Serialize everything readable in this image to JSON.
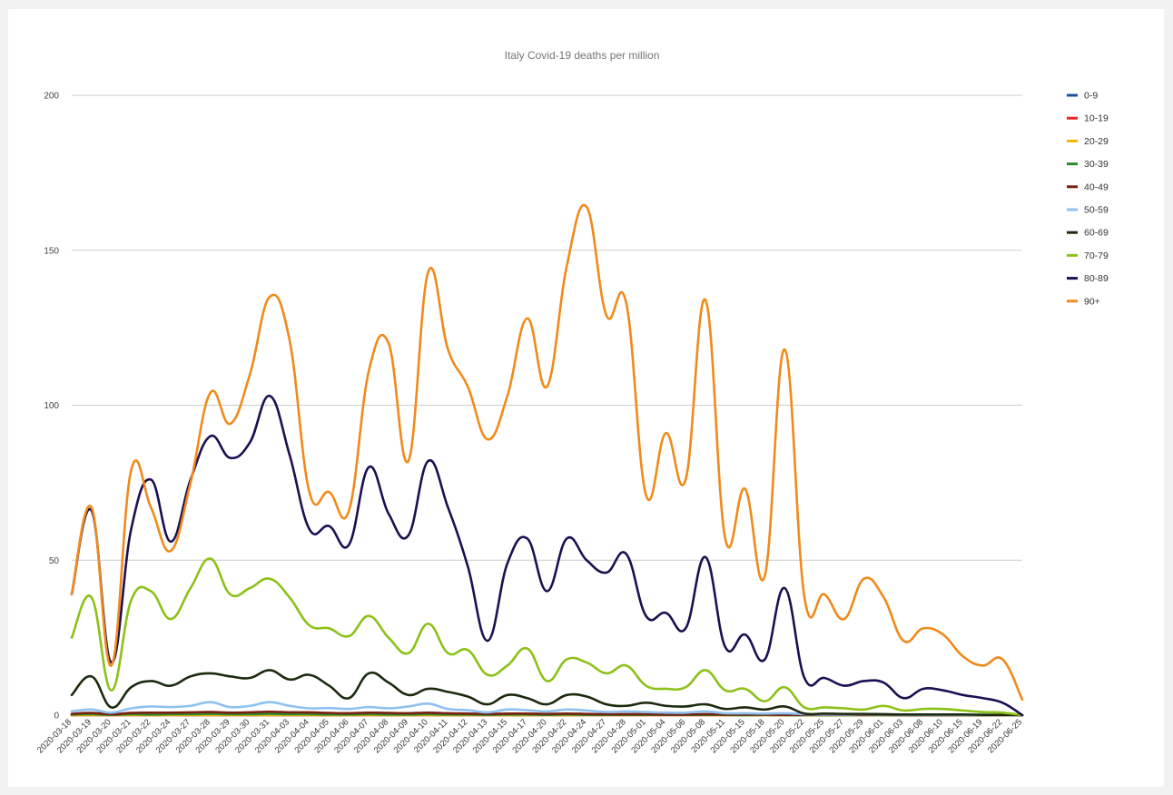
{
  "chart_data": {
    "type": "line",
    "title": "Italy Covid-19 deaths per million",
    "xlabel": "",
    "ylabel": "",
    "ylim": [
      0,
      200
    ],
    "yticks": [
      0,
      50,
      100,
      150,
      200
    ],
    "grid": true,
    "legend_position": "right",
    "categories": [
      "2020-03-18",
      "2020-03-19",
      "2020-03-20",
      "2020-03-21",
      "2020-03-22",
      "2020-03-24",
      "2020-03-27",
      "2020-03-28",
      "2020-03-29",
      "2020-03-30",
      "2020-03-31",
      "2020-04-03",
      "2020-04-04",
      "2020-04-05",
      "2020-04-06",
      "2020-04-07",
      "2020-04-08",
      "2020-04-09",
      "2020-04-10",
      "2020-04-11",
      "2020-04-12",
      "2020-04-13",
      "2020-04-15",
      "2020-04-17",
      "2020-04-20",
      "2020-04-22",
      "2020-04-24",
      "2020-04-27",
      "2020-04-28",
      "2020-05-01",
      "2020-05-04",
      "2020-05-06",
      "2020-05-08",
      "2020-05-11",
      "2020-05-15",
      "2020-05-18",
      "2020-05-20",
      "2020-05-22",
      "2020-05-25",
      "2020-05-27",
      "2020-05-29",
      "2020-06-01",
      "2020-06-03",
      "2020-06-08",
      "2020-06-10",
      "2020-06-15",
      "2020-06-19",
      "2020-06-22",
      "2020-06-25"
    ],
    "series": [
      {
        "name": "0-9",
        "color": "#1a4f9c",
        "values": [
          0,
          0,
          0,
          0,
          0,
          0,
          0,
          0,
          0,
          0,
          0,
          0,
          0,
          0,
          0,
          0,
          0,
          0,
          0,
          0,
          0,
          0,
          0,
          0,
          0,
          0,
          0,
          0,
          0,
          0,
          0,
          0,
          0,
          0,
          0,
          0,
          0,
          0,
          0,
          0,
          0,
          0,
          0,
          0,
          0,
          0,
          0,
          0,
          0
        ]
      },
      {
        "name": "10-19",
        "color": "#e8281e",
        "values": [
          0,
          0,
          0,
          0,
          0,
          0,
          0,
          0,
          0,
          0,
          0,
          0,
          0,
          0,
          0,
          0,
          0,
          0,
          0,
          0,
          0,
          0,
          0,
          0,
          0,
          0,
          0,
          0,
          0,
          0,
          0,
          0,
          0,
          0,
          0,
          0,
          0,
          0,
          0,
          0,
          0,
          0,
          0,
          0,
          0,
          0,
          0,
          0,
          0
        ]
      },
      {
        "name": "20-29",
        "color": "#f2b705",
        "values": [
          0,
          0,
          0,
          0,
          0,
          0,
          0,
          0,
          0,
          0,
          0,
          0,
          0,
          0,
          0,
          0,
          0,
          0,
          0,
          0,
          0,
          0,
          0,
          0,
          0,
          0,
          0,
          0,
          0,
          0,
          0,
          0,
          0,
          0,
          0,
          0,
          0,
          0,
          0,
          0,
          0,
          0,
          0,
          0,
          0,
          0,
          0,
          0,
          0
        ]
      },
      {
        "name": "30-39",
        "color": "#2e8b2e",
        "values": [
          0.2,
          0.3,
          0.1,
          0.3,
          0.2,
          0.3,
          0.3,
          0.4,
          0.3,
          0.3,
          0.4,
          0.3,
          0.3,
          0.2,
          0.2,
          0.3,
          0.2,
          0.2,
          0.3,
          0.2,
          0.2,
          0.1,
          0.2,
          0.2,
          0.1,
          0.2,
          0.1,
          0.1,
          0.1,
          0.1,
          0.1,
          0.1,
          0.1,
          0.1,
          0,
          0.1,
          0,
          0,
          0,
          0,
          0,
          0,
          0,
          0,
          0,
          0,
          0,
          0,
          0
        ]
      },
      {
        "name": "40-49",
        "color": "#7a1e12",
        "values": [
          0.4,
          0.7,
          0.3,
          0.7,
          0.8,
          0.8,
          0.9,
          1.0,
          0.8,
          0.9,
          1.1,
          0.9,
          0.9,
          0.7,
          0.6,
          0.8,
          0.7,
          0.6,
          0.8,
          0.6,
          0.5,
          0.4,
          0.5,
          0.5,
          0.4,
          0.5,
          0.4,
          0.3,
          0.3,
          0.3,
          0.2,
          0.2,
          0.3,
          0.2,
          0.2,
          0.2,
          0.1,
          0.1,
          0.1,
          0.1,
          0.1,
          0.1,
          0,
          0,
          0,
          0,
          0,
          0,
          0
        ]
      },
      {
        "name": "50-59",
        "color": "#8ec1f0",
        "values": [
          1.2,
          1.8,
          0.8,
          2.2,
          2.8,
          2.6,
          3.0,
          4.2,
          2.6,
          3.0,
          4.2,
          3.0,
          2.2,
          2.3,
          2.0,
          2.6,
          2.2,
          2.8,
          3.7,
          2.0,
          1.6,
          0.9,
          1.8,
          1.6,
          1.2,
          1.8,
          1.5,
          1.0,
          1.2,
          1.0,
          0.8,
          0.8,
          1.2,
          0.6,
          0.6,
          0.5,
          0.6,
          0.3,
          0.2,
          0.2,
          0.3,
          0.2,
          0.1,
          0.1,
          0.1,
          0.1,
          0.1,
          0.1,
          0
        ]
      },
      {
        "name": "60-69",
        "color": "#1b2a0e",
        "values": [
          6.5,
          12.5,
          2.5,
          9.0,
          11.0,
          9.5,
          12.5,
          13.5,
          12.5,
          12.0,
          14.5,
          11.5,
          13.0,
          9.5,
          5.5,
          13.5,
          10.5,
          6.5,
          8.5,
          7.5,
          6.0,
          3.5,
          6.5,
          5.5,
          3.5,
          6.5,
          6.0,
          3.5,
          3.0,
          4.0,
          3.0,
          2.8,
          3.5,
          2.0,
          2.5,
          1.8,
          2.8,
          0.5,
          0.5,
          0.4,
          0.4,
          0.3,
          0.2,
          0.2,
          0.2,
          0.2,
          0.1,
          0.1,
          0
        ]
      },
      {
        "name": "70-79",
        "color": "#8cc117",
        "values": [
          25,
          38,
          8,
          37,
          40,
          31,
          41,
          50.5,
          39,
          41,
          44,
          38,
          29,
          28,
          25.5,
          32,
          25,
          20,
          29.5,
          20,
          21,
          13,
          16,
          21.5,
          11,
          18,
          17,
          13.5,
          16,
          9.5,
          8.5,
          9,
          14.5,
          8,
          8.5,
          4.5,
          9,
          2.5,
          2.5,
          2.2,
          1.8,
          3.0,
          1.5,
          2.0,
          2.0,
          1.5,
          1.0,
          0.8,
          0
        ]
      },
      {
        "name": "80-89",
        "color": "#1c0f52",
        "values": [
          39,
          66,
          17,
          60,
          76,
          56,
          76,
          90,
          83,
          88,
          103,
          84,
          60,
          61,
          55,
          80,
          65,
          58,
          82,
          67,
          48,
          24,
          49,
          57,
          40,
          57,
          50,
          46,
          52,
          32,
          33,
          28,
          51,
          22,
          26,
          18,
          41,
          12,
          12,
          9.5,
          11,
          10.5,
          5.5,
          8.5,
          8,
          6.5,
          5.5,
          4,
          0
        ]
      },
      {
        "name": "90+",
        "color": "#f08a1a",
        "values": [
          39,
          67,
          16,
          79,
          67,
          53,
          75,
          104,
          94,
          110,
          135,
          121,
          72,
          72,
          66,
          111,
          120,
          82,
          143,
          118,
          106,
          89,
          103,
          128,
          106,
          145,
          164,
          129,
          133,
          71,
          91,
          76,
          134,
          57,
          73,
          45,
          118,
          38,
          39,
          31,
          44,
          38,
          24,
          28,
          26,
          19,
          16,
          18,
          5
        ]
      }
    ]
  }
}
